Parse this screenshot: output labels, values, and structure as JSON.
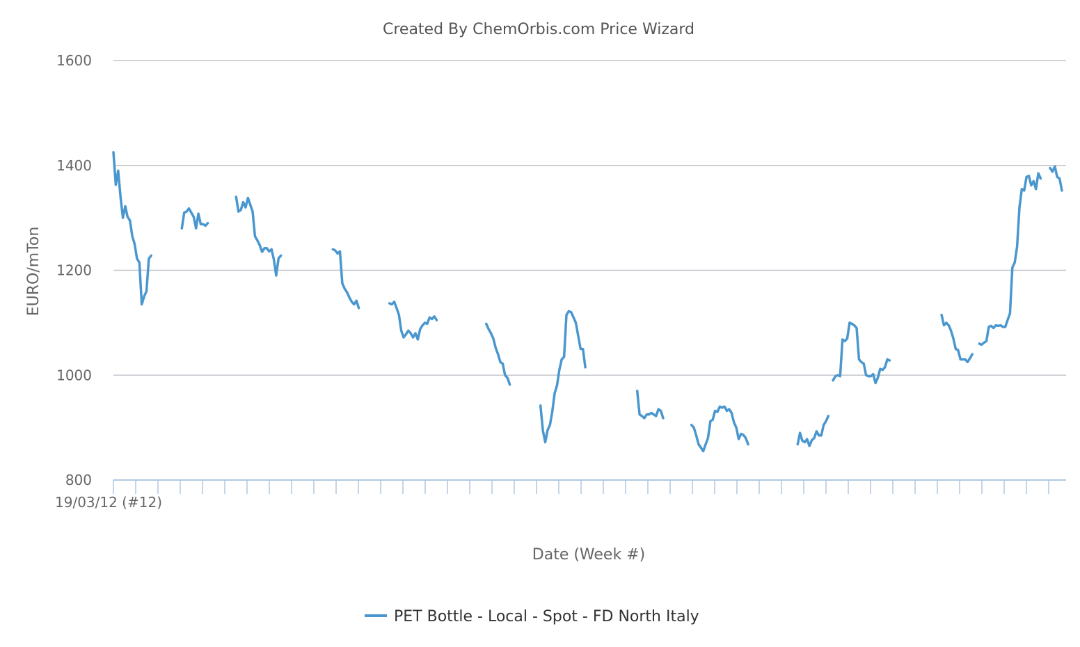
{
  "chart_data": {
    "type": "line",
    "title": "Created By ChemOrbis.com Price Wizard",
    "xlabel": "Date (Week #)",
    "ylabel": "EURO/mTon",
    "x_start_label": "19/03/12 (#12)",
    "ylim": [
      800,
      1600
    ],
    "yticks": [
      800,
      1000,
      1200,
      1400,
      1600
    ],
    "grid": true,
    "legend_position": "bottom-center",
    "colors": {
      "series": "#4a97cf",
      "grid": "#c0c4c9",
      "axis": "#b0c7e0",
      "text": "#666666"
    },
    "series": [
      {
        "name": "PET Bottle - Local - Spot - FD North Italy",
        "segments": [
          [
            [
              0,
              1425
            ],
            [
              1,
              1363
            ],
            [
              2,
              1390
            ],
            [
              3,
              1340
            ],
            [
              4,
              1300
            ],
            [
              5,
              1322
            ],
            [
              6,
              1302
            ],
            [
              7,
              1295
            ],
            [
              8,
              1265
            ],
            [
              9,
              1250
            ],
            [
              10,
              1222
            ],
            [
              11,
              1215
            ],
            [
              12,
              1135
            ],
            [
              13,
              1150
            ],
            [
              14,
              1160
            ],
            [
              15,
              1222
            ],
            [
              16,
              1228
            ]
          ],
          [
            [
              29,
              1280
            ],
            [
              30,
              1310
            ],
            [
              31,
              1312
            ],
            [
              32,
              1318
            ],
            [
              33,
              1310
            ],
            [
              34,
              1302
            ],
            [
              35,
              1280
            ],
            [
              36,
              1308
            ],
            [
              37,
              1288
            ],
            [
              38,
              1288
            ],
            [
              39,
              1285
            ],
            [
              40,
              1290
            ]
          ],
          [
            [
              52,
              1340
            ],
            [
              53,
              1312
            ],
            [
              54,
              1315
            ],
            [
              55,
              1330
            ],
            [
              56,
              1320
            ],
            [
              57,
              1338
            ],
            [
              58,
              1325
            ],
            [
              59,
              1312
            ],
            [
              60,
              1265
            ],
            [
              61,
              1257
            ],
            [
              62,
              1248
            ],
            [
              63,
              1235
            ],
            [
              64,
              1242
            ],
            [
              65,
              1242
            ],
            [
              66,
              1236
            ],
            [
              67,
              1240
            ],
            [
              68,
              1220
            ],
            [
              69,
              1190
            ],
            [
              70,
              1223
            ],
            [
              71,
              1228
            ]
          ],
          [
            [
              93,
              1240
            ],
            [
              94,
              1238
            ],
            [
              95,
              1232
            ],
            [
              96,
              1236
            ],
            [
              97,
              1175
            ],
            [
              98,
              1165
            ],
            [
              99,
              1158
            ],
            [
              100,
              1148
            ],
            [
              101,
              1140
            ],
            [
              102,
              1135
            ],
            [
              103,
              1142
            ],
            [
              104,
              1128
            ]
          ],
          [
            [
              117,
              1137
            ],
            [
              118,
              1135
            ],
            [
              119,
              1140
            ],
            [
              120,
              1128
            ],
            [
              121,
              1115
            ],
            [
              122,
              1085
            ],
            [
              123,
              1072
            ],
            [
              124,
              1078
            ],
            [
              125,
              1085
            ],
            [
              126,
              1080
            ],
            [
              127,
              1072
            ],
            [
              128,
              1080
            ],
            [
              129,
              1068
            ],
            [
              130,
              1088
            ],
            [
              131,
              1095
            ],
            [
              132,
              1100
            ],
            [
              133,
              1098
            ],
            [
              134,
              1110
            ],
            [
              135,
              1107
            ],
            [
              136,
              1112
            ],
            [
              137,
              1105
            ]
          ],
          [
            [
              158,
              1098
            ],
            [
              159,
              1088
            ],
            [
              160,
              1080
            ],
            [
              161,
              1070
            ],
            [
              162,
              1052
            ],
            [
              163,
              1040
            ],
            [
              164,
              1025
            ],
            [
              165,
              1022
            ],
            [
              166,
              1000
            ],
            [
              167,
              995
            ],
            [
              168,
              982
            ]
          ],
          [
            [
              181,
              942
            ],
            [
              182,
              895
            ],
            [
              183,
              872
            ],
            [
              184,
              895
            ],
            [
              185,
              905
            ],
            [
              186,
              930
            ],
            [
              187,
              965
            ],
            [
              188,
              980
            ],
            [
              189,
              1010
            ],
            [
              190,
              1030
            ],
            [
              191,
              1035
            ],
            [
              192,
              1115
            ],
            [
              193,
              1122
            ],
            [
              194,
              1120
            ],
            [
              195,
              1110
            ],
            [
              196,
              1100
            ],
            [
              197,
              1075
            ],
            [
              198,
              1050
            ],
            [
              199,
              1050
            ],
            [
              200,
              1015
            ]
          ],
          [
            [
              222,
              970
            ],
            [
              223,
              925
            ],
            [
              224,
              922
            ],
            [
              225,
              918
            ],
            [
              226,
              925
            ],
            [
              227,
              925
            ],
            [
              228,
              928
            ],
            [
              229,
              925
            ],
            [
              230,
              922
            ],
            [
              231,
              935
            ],
            [
              232,
              932
            ],
            [
              233,
              918
            ]
          ],
          [
            [
              245,
              905
            ],
            [
              246,
              900
            ],
            [
              247,
              885
            ],
            [
              248,
              868
            ],
            [
              249,
              862
            ],
            [
              250,
              855
            ],
            [
              251,
              868
            ],
            [
              252,
              880
            ],
            [
              253,
              912
            ],
            [
              254,
              915
            ],
            [
              255,
              932
            ],
            [
              256,
              930
            ],
            [
              257,
              940
            ],
            [
              258,
              938
            ],
            [
              259,
              940
            ],
            [
              260,
              932
            ],
            [
              261,
              935
            ],
            [
              262,
              928
            ],
            [
              263,
              910
            ],
            [
              264,
              900
            ],
            [
              265,
              878
            ],
            [
              266,
              888
            ],
            [
              267,
              886
            ],
            [
              268,
              880
            ],
            [
              269,
              868
            ]
          ],
          [
            [
              290,
              868
            ],
            [
              291,
              890
            ],
            [
              292,
              875
            ],
            [
              293,
              872
            ],
            [
              294,
              878
            ],
            [
              295,
              865
            ],
            [
              296,
              876
            ],
            [
              297,
              880
            ],
            [
              298,
              893
            ],
            [
              299,
              885
            ],
            [
              300,
              885
            ],
            [
              301,
              905
            ],
            [
              302,
              912
            ],
            [
              303,
              922
            ]
          ],
          [
            [
              305,
              990
            ],
            [
              306,
              998
            ],
            [
              307,
              1000
            ],
            [
              308,
              998
            ],
            [
              309,
              1068
            ],
            [
              310,
              1065
            ],
            [
              311,
              1070
            ],
            [
              312,
              1100
            ],
            [
              313,
              1098
            ],
            [
              314,
              1095
            ],
            [
              315,
              1090
            ],
            [
              316,
              1030
            ],
            [
              317,
              1025
            ],
            [
              318,
              1022
            ],
            [
              319,
              1000
            ],
            [
              320,
              998
            ],
            [
              321,
              998
            ],
            [
              322,
              1002
            ],
            [
              323,
              985
            ],
            [
              324,
              995
            ],
            [
              325,
              1012
            ],
            [
              326,
              1010
            ],
            [
              327,
              1015
            ],
            [
              328,
              1030
            ],
            [
              329,
              1028
            ]
          ],
          [
            [
              351,
              1115
            ],
            [
              352,
              1095
            ],
            [
              353,
              1100
            ],
            [
              354,
              1095
            ],
            [
              355,
              1085
            ],
            [
              356,
              1070
            ],
            [
              357,
              1050
            ],
            [
              358,
              1048
            ],
            [
              359,
              1030
            ],
            [
              360,
              1030
            ],
            [
              361,
              1030
            ],
            [
              362,
              1025
            ],
            [
              363,
              1032
            ],
            [
              364,
              1040
            ]
          ],
          [
            [
              367,
              1060
            ],
            [
              368,
              1058
            ],
            [
              369,
              1062
            ],
            [
              370,
              1065
            ],
            [
              371,
              1092
            ],
            [
              372,
              1094
            ],
            [
              373,
              1090
            ],
            [
              374,
              1095
            ],
            [
              375,
              1094
            ],
            [
              376,
              1095
            ],
            [
              377,
              1092
            ],
            [
              378,
              1092
            ],
            [
              379,
              1105
            ],
            [
              380,
              1118
            ],
            [
              381,
              1205
            ],
            [
              382,
              1215
            ],
            [
              383,
              1245
            ],
            [
              384,
              1320
            ],
            [
              385,
              1355
            ],
            [
              386,
              1352
            ],
            [
              387,
              1378
            ],
            [
              388,
              1380
            ],
            [
              389,
              1362
            ],
            [
              390,
              1370
            ],
            [
              391,
              1355
            ],
            [
              392,
              1385
            ],
            [
              393,
              1375
            ]
          ],
          [
            [
              397,
              1395
            ],
            [
              398,
              1388
            ],
            [
              399,
              1398
            ],
            [
              400,
              1378
            ],
            [
              401,
              1375
            ],
            [
              402,
              1352
            ]
          ]
        ]
      }
    ]
  }
}
